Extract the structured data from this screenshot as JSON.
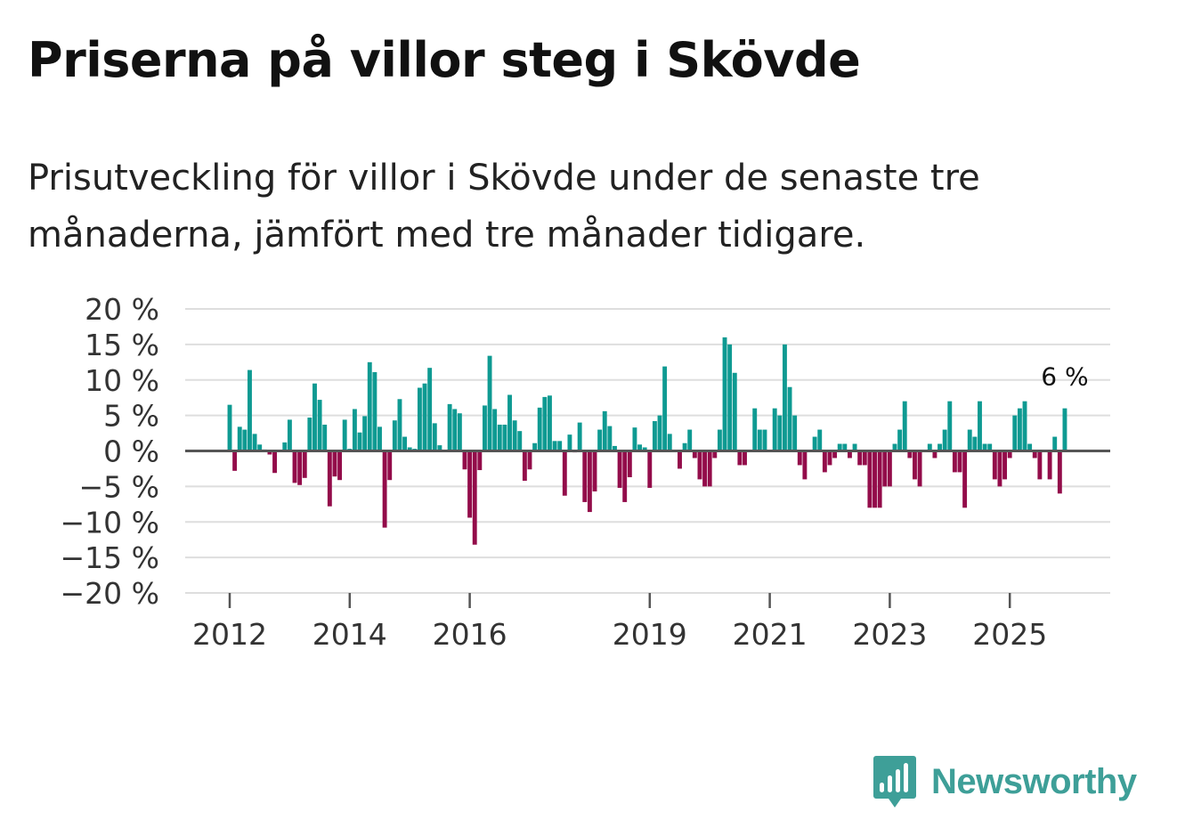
{
  "header": {
    "title": "Priserna på villor steg i Skövde",
    "subtitle": "Prisutveckling för villor i Skövde under de senaste tre månaderna, jämfört med tre månader tidigare."
  },
  "brand": {
    "name": "Newsworthy",
    "color": "#3e9f98",
    "icon": "newsworthy-bar-chart-icon"
  },
  "colors": {
    "positive": "#0e9a92",
    "negative": "#930c4a",
    "grid": "#dedede",
    "zero": "#555555",
    "label": "#333333"
  },
  "chart_data": {
    "type": "bar",
    "title": "Priserna på villor steg i Skövde",
    "xlabel": "",
    "ylabel": "",
    "ylim": [
      -20,
      20
    ],
    "yticks": [
      20,
      15,
      10,
      5,
      0,
      -5,
      -10,
      -15,
      -20
    ],
    "ytick_labels": [
      "20 %",
      "15 %",
      "10 %",
      "5 %",
      "0 %",
      "−5 %",
      "−10 %",
      "−15 %",
      "−20 %"
    ],
    "x_ticks": [
      {
        "label": "2012",
        "x": 2012.0
      },
      {
        "label": "2014",
        "x": 2014.0
      },
      {
        "label": "2016",
        "x": 2016.0
      },
      {
        "label": "2019",
        "x": 2019.0
      },
      {
        "label": "2021",
        "x": 2021.0
      },
      {
        "label": "2023",
        "x": 2023.0
      },
      {
        "label": "2025",
        "x": 2025.0
      }
    ],
    "x_start": 2012.0,
    "bar_step_years": 0.08333,
    "grid": true,
    "annotation": {
      "text": "6 %",
      "target": "last-bar"
    },
    "values": [
      6.5,
      -2.8,
      3.4,
      3.0,
      11.4,
      2.4,
      0.9,
      0.2,
      -0.5,
      -3.1,
      0.1,
      1.2,
      4.4,
      -4.5,
      -4.8,
      -3.8,
      4.7,
      9.5,
      7.2,
      3.7,
      -7.8,
      -3.6,
      -4.1,
      4.4,
      0.3,
      5.9,
      2.6,
      4.9,
      12.5,
      11.1,
      3.4,
      -10.8,
      -4.1,
      4.3,
      7.3,
      2.0,
      0.5,
      0.3,
      8.9,
      9.5,
      11.7,
      3.9,
      0.8,
      0.1,
      6.6,
      5.9,
      5.3,
      -2.6,
      -9.4,
      -13.2,
      -2.7,
      6.4,
      13.4,
      5.9,
      3.7,
      3.7,
      7.9,
      4.3,
      2.8,
      -4.2,
      -2.6,
      1.1,
      6.1,
      7.6,
      7.8,
      1.4,
      1.4,
      -6.3,
      2.3,
      -0.2,
      4.0,
      -7.2,
      -8.6,
      -5.7,
      3.0,
      5.6,
      3.5,
      0.7,
      -5.2,
      -7.2,
      -3.7,
      3.3,
      0.9,
      0.5,
      -5.2,
      4.2,
      5.0,
      11.9,
      2.4,
      0.0,
      -2.5,
      1.1,
      3.0,
      -1.0,
      -4.0,
      -5.0,
      -5.0,
      -1.0,
      3.0,
      16.0,
      15.0,
      11.0,
      -2.0,
      -2.0,
      0.0,
      6.0,
      3.0,
      3.0,
      0.0,
      6.0,
      5.0,
      15.0,
      9.0,
      5.0,
      -2.0,
      -4.0,
      0.0,
      2.0,
      3.0,
      -3.0,
      -2.0,
      -1.0,
      1.0,
      1.0,
      -1.0,
      1.0,
      -2.0,
      -2.0,
      -8.0,
      -8.0,
      -8.0,
      -5.0,
      -5.0,
      1.0,
      3.0,
      7.0,
      -1.0,
      -4.0,
      -5.0,
      0.0,
      1.0,
      -1.0,
      1.0,
      3.0,
      7.0,
      -3.0,
      -3.0,
      -8.0,
      3.0,
      2.0,
      7.0,
      1.0,
      1.0,
      -4.0,
      -5.0,
      -4.0,
      -1.0,
      5.0,
      6.0,
      7.0,
      1.0,
      -1.0,
      -4.0,
      0.0,
      -4.0,
      2.0,
      -6.0,
      6.0
    ]
  }
}
